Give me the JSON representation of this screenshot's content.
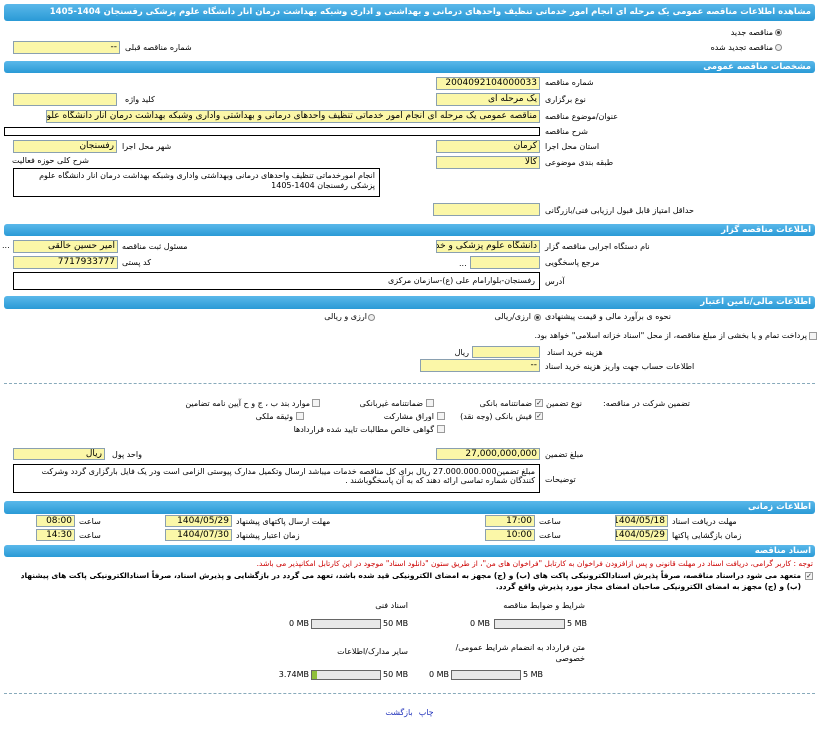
{
  "title": "مشاهده اطلاعات مناقصه عمومی یک مرحله ای انجام امور خدماتی تنظیف واحدهای درمانی و بهداشتی و اداری وشبکه بهداشت درمان انار دانشگاه علوم پزشکی رفسنجان 1404-1405",
  "tender_type": {
    "new": "مناقصه جدید",
    "renewed": "مناقصه تجدید شده",
    "selected": "new"
  },
  "prev_number": {
    "label": "شماره مناقصه قبلی",
    "value": "--"
  },
  "general": {
    "header": "مشخصات مناقصه عمومی",
    "number_label": "شماره مناقصه",
    "number": "2004092104000033",
    "holding_label": "نوع برگزاری",
    "holding": "یک مرحله ای",
    "keyword_label": "کلید واژه",
    "keyword": "",
    "subject_label": "عنوان/موضوع مناقصه",
    "subject": "مناقصه عمومی یک مرحله ای انجام امور خدماتی تنظیف واحدهای درمانی و بهداشتی واداری وشبکه بهداشت درمان انار دانشگاه علوم",
    "desc_label": "شرح مناقصه",
    "desc": "",
    "province_label": "استان محل اجرا",
    "province": "کرمان",
    "city_label": "شهر محل اجرا",
    "city": "رفسنجان",
    "category_label": "طبقه بندی موضوعی",
    "category": "کالا",
    "activity_label": "شرح کلی حوزه فعالیت",
    "activity": "انجام امورخدماتی تنظیف واحدهای درمانی وبهداشتی واداری وشبکه بهداشت درمان انار دانشگاه علوم پزشکی رفسنجان 1404-1405",
    "min_score_label": "حداقل امتیاز قابل قبول ارزیابی فنی/بازرگانی",
    "min_score": ""
  },
  "organizer": {
    "header": "اطلاعات مناقصه گزار",
    "org_label": "نام دستگاه اجرایی مناقصه گزار",
    "org": "دانشگاه علوم پزشکی و خدمات",
    "responsible_label": "مسئول ثبت مناقصه",
    "responsible": "امیر حسین خالقی",
    "ref_label": "مرجع پاسخگویی",
    "ref": "",
    "postal_label": "کد پستی",
    "postal": "7717933777",
    "address_label": "آدرس",
    "address": "رفسنجان-بلوارامام علی (ع)-سازمان مرکزی",
    "more": "..."
  },
  "finance": {
    "header": "اطلاعات مالی/تامین اعتبار",
    "estimate_label": "نحوه ی برآورد مالی و قیمت پیشنهادی",
    "opt_rial": "ارزی/ریالی",
    "opt_both": "ارزی و ریالی",
    "treasury_text": "پرداخت تمام و یا بخشی از مبلغ مناقصه، از محل \"اسناد خزانه اسلامی\" خواهد بود.",
    "doc_cost_label": "هزینه خرید اسناد",
    "doc_cost": "",
    "doc_cost_unit": "ریال",
    "account_label": "اطلاعات حساب جهت واریز هزینه خرید اسناد",
    "account": "--",
    "guarantee_label": "تضمین شرکت در مناقصه:",
    "guarantee_type_label": "نوع تضمین",
    "guarantees": [
      {
        "label": "ضمانتنامه بانکی",
        "checked": true
      },
      {
        "label": "ضمانتنامه غیربانکی",
        "checked": false
      },
      {
        "label": "موارد بند ب ، ج و ح آیین نامه تضامین",
        "checked": false
      },
      {
        "label": "فیش بانکی (وجه نقد)",
        "checked": true
      },
      {
        "label": "اوراق مشارکت",
        "checked": false
      },
      {
        "label": "وثیقه ملکی",
        "checked": false
      },
      {
        "label": "گواهی خالص مطالبات تایید شده قراردادها",
        "checked": false
      }
    ],
    "amount_label": "مبلغ تضمین",
    "amount": "27,000,000,000",
    "currency_label": "واحد پول",
    "currency": "ریال",
    "notes_label": "توضیحات",
    "notes": "مبلغ تضمین27.000.000.000 ریال برای کل مناقصه خدمات میباشد ارسال وتکمیل مدارک پیوستی الزامی است ودر یک فایل بارگزاری گردد وشرکت کنندگان شماره تماسی ارائه دهند که به آن پاسخگوباشند ."
  },
  "timing": {
    "header": "اطلاعات زمانی",
    "doc_deadline_label": "مهلت دریافت اسناد",
    "doc_deadline": "1404/05/18",
    "doc_deadline_time": "17:00",
    "submit_label": "مهلت ارسال پاکتهای پیشنهاد",
    "submit": "1404/05/29",
    "submit_time": "08:00",
    "opening_label": "زمان بازگشایی پاکتها",
    "opening": "1404/05/29",
    "opening_time": "10:00",
    "validity_label": "زمان اعتبار پیشنهاد",
    "validity": "1404/07/30",
    "validity_time": "14:30",
    "time_label": "ساعت"
  },
  "documents": {
    "header": "اسناد مناقصه",
    "note": "توجه : کاربر گرامی، دریافت اسناد در مهلت قانونی و پس ازافزودن فراخوان به کارتابل \"فراخوان های من\"، از طریق ستون \"دانلود اسناد\" موجود در این کارتابل امکانپذیر می باشد.",
    "commit": "متعهد می شود دراسناد مناقصه، صرفاً پذیرش اسنادالکترونیکی پاکت های (ب) و (ج) مجهز به امضای الکترونیکی قید شده باشد، تعهد می گردد در بازگشایی و پذیرش اسناد، صرفاً اسنادالکترونیکی پاکت های پیشنهاد (ب) و (ج) مجهز به امضای الکترونیکی صاحبان امضای مجاز مورد پذیرش واقع گردد.",
    "items": [
      {
        "label": "شرایط و ضوابط مناقصه",
        "used": "0 MB",
        "max": "5 MB",
        "fraction": 0
      },
      {
        "label": "اسناد فنی",
        "used": "0 MB",
        "max": "50 MB",
        "fraction": 0
      },
      {
        "label": "متن قرارداد به انضمام شرایط عمومی/خصوصی",
        "used": "0 MB",
        "max": "5 MB",
        "fraction": 0
      },
      {
        "label": "سایر مدارک/اطلاعات",
        "used": "3.74MB",
        "max": "50 MB",
        "fraction": 0.0748
      }
    ]
  },
  "footer": {
    "print": "چاپ",
    "back": "بازگشت"
  },
  "colors": {
    "header": "#2a9ad6",
    "input_bg": "#fbf7a8",
    "note": "#cc0000"
  }
}
